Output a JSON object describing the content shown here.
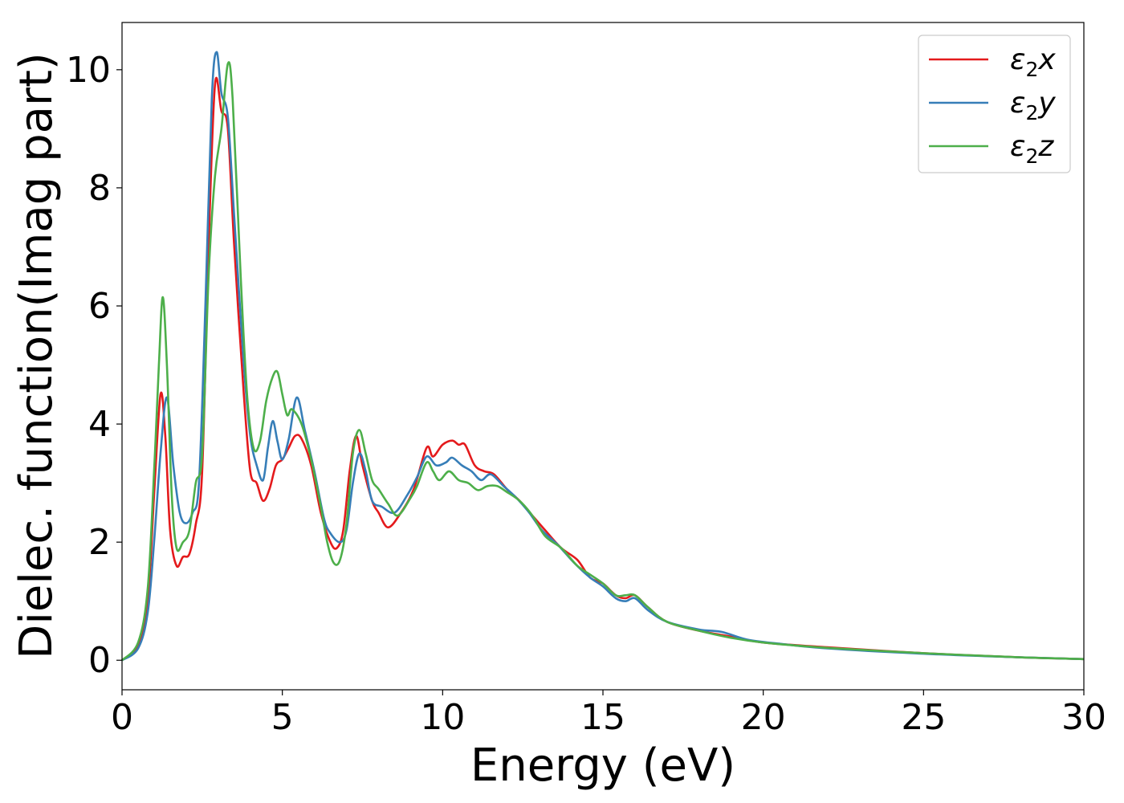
{
  "chart_data": {
    "type": "line",
    "xlabel": "Energy (eV)",
    "ylabel": "Dielec. function(Imag part)",
    "xlim": [
      0,
      30
    ],
    "ylim": [
      -0.5,
      10.8
    ],
    "xticks": [
      0,
      5,
      10,
      15,
      20,
      25,
      30
    ],
    "yticks": [
      0,
      2,
      4,
      6,
      8,
      10
    ],
    "grid": false,
    "legend_position": "top-right",
    "series": [
      {
        "name": "ε₂x",
        "legend_base": "ε",
        "legend_sub": "2",
        "legend_suffix": "x",
        "color": "#e41a1c",
        "points": [
          [
            0,
            0
          ],
          [
            0.5,
            0.25
          ],
          [
            0.8,
            1.0
          ],
          [
            1.0,
            2.8
          ],
          [
            1.2,
            4.5
          ],
          [
            1.35,
            3.8
          ],
          [
            1.5,
            2.2
          ],
          [
            1.7,
            1.6
          ],
          [
            1.9,
            1.75
          ],
          [
            2.1,
            1.8
          ],
          [
            2.3,
            2.3
          ],
          [
            2.5,
            3.2
          ],
          [
            2.7,
            7.0
          ],
          [
            2.9,
            9.75
          ],
          [
            3.1,
            9.3
          ],
          [
            3.3,
            9.0
          ],
          [
            3.5,
            7.0
          ],
          [
            3.8,
            4.5
          ],
          [
            4.0,
            3.2
          ],
          [
            4.2,
            3.0
          ],
          [
            4.4,
            2.7
          ],
          [
            4.6,
            2.9
          ],
          [
            4.8,
            3.3
          ],
          [
            5.0,
            3.4
          ],
          [
            5.2,
            3.6
          ],
          [
            5.4,
            3.8
          ],
          [
            5.6,
            3.75
          ],
          [
            5.9,
            3.3
          ],
          [
            6.2,
            2.5
          ],
          [
            6.5,
            2.0
          ],
          [
            6.7,
            1.9
          ],
          [
            6.9,
            2.2
          ],
          [
            7.1,
            3.2
          ],
          [
            7.3,
            3.8
          ],
          [
            7.5,
            3.3
          ],
          [
            7.8,
            2.7
          ],
          [
            8.0,
            2.5
          ],
          [
            8.3,
            2.25
          ],
          [
            8.7,
            2.5
          ],
          [
            9.1,
            2.9
          ],
          [
            9.5,
            3.6
          ],
          [
            9.7,
            3.45
          ],
          [
            10.0,
            3.65
          ],
          [
            10.3,
            3.72
          ],
          [
            10.5,
            3.65
          ],
          [
            10.7,
            3.65
          ],
          [
            11.0,
            3.3
          ],
          [
            11.3,
            3.2
          ],
          [
            11.6,
            3.15
          ],
          [
            12.0,
            2.9
          ],
          [
            12.4,
            2.7
          ],
          [
            12.8,
            2.45
          ],
          [
            13.2,
            2.2
          ],
          [
            13.7,
            1.9
          ],
          [
            14.2,
            1.7
          ],
          [
            14.6,
            1.4
          ],
          [
            15.0,
            1.3
          ],
          [
            15.4,
            1.1
          ],
          [
            15.7,
            1.05
          ],
          [
            16.0,
            1.1
          ],
          [
            16.4,
            0.9
          ],
          [
            17.0,
            0.65
          ],
          [
            18.0,
            0.5
          ],
          [
            19.0,
            0.4
          ],
          [
            20.0,
            0.3
          ],
          [
            22.0,
            0.22
          ],
          [
            25.0,
            0.12
          ],
          [
            28.0,
            0.05
          ],
          [
            30.0,
            0.02
          ]
        ]
      },
      {
        "name": "ε₂y",
        "legend_base": "ε",
        "legend_sub": "2",
        "legend_suffix": "y",
        "color": "#377eb8",
        "points": [
          [
            0,
            0
          ],
          [
            0.5,
            0.2
          ],
          [
            0.8,
            0.8
          ],
          [
            1.0,
            2.0
          ],
          [
            1.2,
            3.5
          ],
          [
            1.4,
            4.45
          ],
          [
            1.6,
            3.3
          ],
          [
            1.8,
            2.5
          ],
          [
            2.0,
            2.32
          ],
          [
            2.2,
            2.5
          ],
          [
            2.4,
            3.0
          ],
          [
            2.6,
            6.0
          ],
          [
            2.8,
            9.5
          ],
          [
            2.95,
            10.3
          ],
          [
            3.1,
            9.6
          ],
          [
            3.3,
            9.2
          ],
          [
            3.5,
            7.5
          ],
          [
            3.8,
            5.0
          ],
          [
            4.0,
            3.8
          ],
          [
            4.2,
            3.3
          ],
          [
            4.4,
            3.05
          ],
          [
            4.55,
            3.6
          ],
          [
            4.7,
            4.05
          ],
          [
            4.85,
            3.7
          ],
          [
            5.0,
            3.4
          ],
          [
            5.2,
            3.75
          ],
          [
            5.45,
            4.45
          ],
          [
            5.7,
            3.9
          ],
          [
            6.0,
            3.2
          ],
          [
            6.3,
            2.4
          ],
          [
            6.5,
            2.15
          ],
          [
            6.8,
            2.0
          ],
          [
            7.0,
            2.2
          ],
          [
            7.2,
            3.0
          ],
          [
            7.4,
            3.5
          ],
          [
            7.6,
            3.2
          ],
          [
            7.8,
            2.7
          ],
          [
            8.1,
            2.6
          ],
          [
            8.5,
            2.5
          ],
          [
            8.9,
            2.8
          ],
          [
            9.2,
            3.1
          ],
          [
            9.5,
            3.45
          ],
          [
            9.8,
            3.3
          ],
          [
            10.1,
            3.35
          ],
          [
            10.3,
            3.43
          ],
          [
            10.6,
            3.3
          ],
          [
            10.9,
            3.2
          ],
          [
            11.2,
            3.05
          ],
          [
            11.5,
            3.15
          ],
          [
            11.9,
            2.95
          ],
          [
            12.3,
            2.75
          ],
          [
            12.7,
            2.5
          ],
          [
            13.1,
            2.2
          ],
          [
            13.6,
            1.95
          ],
          [
            14.1,
            1.65
          ],
          [
            14.6,
            1.4
          ],
          [
            15.0,
            1.25
          ],
          [
            15.4,
            1.05
          ],
          [
            15.7,
            1.0
          ],
          [
            16.0,
            1.05
          ],
          [
            16.4,
            0.85
          ],
          [
            17.0,
            0.65
          ],
          [
            18.0,
            0.52
          ],
          [
            18.7,
            0.48
          ],
          [
            19.5,
            0.35
          ],
          [
            20.5,
            0.28
          ],
          [
            22.0,
            0.2
          ],
          [
            25.0,
            0.11
          ],
          [
            28.0,
            0.05
          ],
          [
            30.0,
            0.02
          ]
        ]
      },
      {
        "name": "ε₂z",
        "legend_base": "ε",
        "legend_sub": "2",
        "legend_suffix": "z",
        "color": "#4daf4a",
        "points": [
          [
            0,
            0
          ],
          [
            0.5,
            0.3
          ],
          [
            0.8,
            1.2
          ],
          [
            1.0,
            3.2
          ],
          [
            1.15,
            5.0
          ],
          [
            1.27,
            6.15
          ],
          [
            1.4,
            5.0
          ],
          [
            1.55,
            2.8
          ],
          [
            1.7,
            1.9
          ],
          [
            1.9,
            2.0
          ],
          [
            2.1,
            2.2
          ],
          [
            2.3,
            3.0
          ],
          [
            2.5,
            3.5
          ],
          [
            2.7,
            6.5
          ],
          [
            2.9,
            8.2
          ],
          [
            3.1,
            9.0
          ],
          [
            3.3,
            10.1
          ],
          [
            3.45,
            9.5
          ],
          [
            3.7,
            6.5
          ],
          [
            3.9,
            4.5
          ],
          [
            4.1,
            3.6
          ],
          [
            4.3,
            3.7
          ],
          [
            4.5,
            4.4
          ],
          [
            4.7,
            4.8
          ],
          [
            4.85,
            4.88
          ],
          [
            5.0,
            4.5
          ],
          [
            5.15,
            4.15
          ],
          [
            5.3,
            4.25
          ],
          [
            5.6,
            4.0
          ],
          [
            5.9,
            3.4
          ],
          [
            6.2,
            2.6
          ],
          [
            6.4,
            2.0
          ],
          [
            6.6,
            1.65
          ],
          [
            6.8,
            1.7
          ],
          [
            7.0,
            2.3
          ],
          [
            7.2,
            3.5
          ],
          [
            7.4,
            3.9
          ],
          [
            7.6,
            3.5
          ],
          [
            7.8,
            3.05
          ],
          [
            8.0,
            2.9
          ],
          [
            8.3,
            2.65
          ],
          [
            8.6,
            2.45
          ],
          [
            9.0,
            2.75
          ],
          [
            9.2,
            2.95
          ],
          [
            9.5,
            3.35
          ],
          [
            9.7,
            3.2
          ],
          [
            9.9,
            3.05
          ],
          [
            10.2,
            3.2
          ],
          [
            10.5,
            3.05
          ],
          [
            10.8,
            3.0
          ],
          [
            11.1,
            2.88
          ],
          [
            11.4,
            2.95
          ],
          [
            11.7,
            2.95
          ],
          [
            12.0,
            2.85
          ],
          [
            12.4,
            2.7
          ],
          [
            12.8,
            2.45
          ],
          [
            13.2,
            2.1
          ],
          [
            13.7,
            1.9
          ],
          [
            14.2,
            1.6
          ],
          [
            14.6,
            1.45
          ],
          [
            15.0,
            1.3
          ],
          [
            15.4,
            1.1
          ],
          [
            15.7,
            1.1
          ],
          [
            16.0,
            1.1
          ],
          [
            16.4,
            0.9
          ],
          [
            17.0,
            0.65
          ],
          [
            18.0,
            0.5
          ],
          [
            19.0,
            0.38
          ],
          [
            20.0,
            0.3
          ],
          [
            22.0,
            0.21
          ],
          [
            25.0,
            0.12
          ],
          [
            28.0,
            0.05
          ],
          [
            30.0,
            0.02
          ]
        ]
      }
    ]
  }
}
